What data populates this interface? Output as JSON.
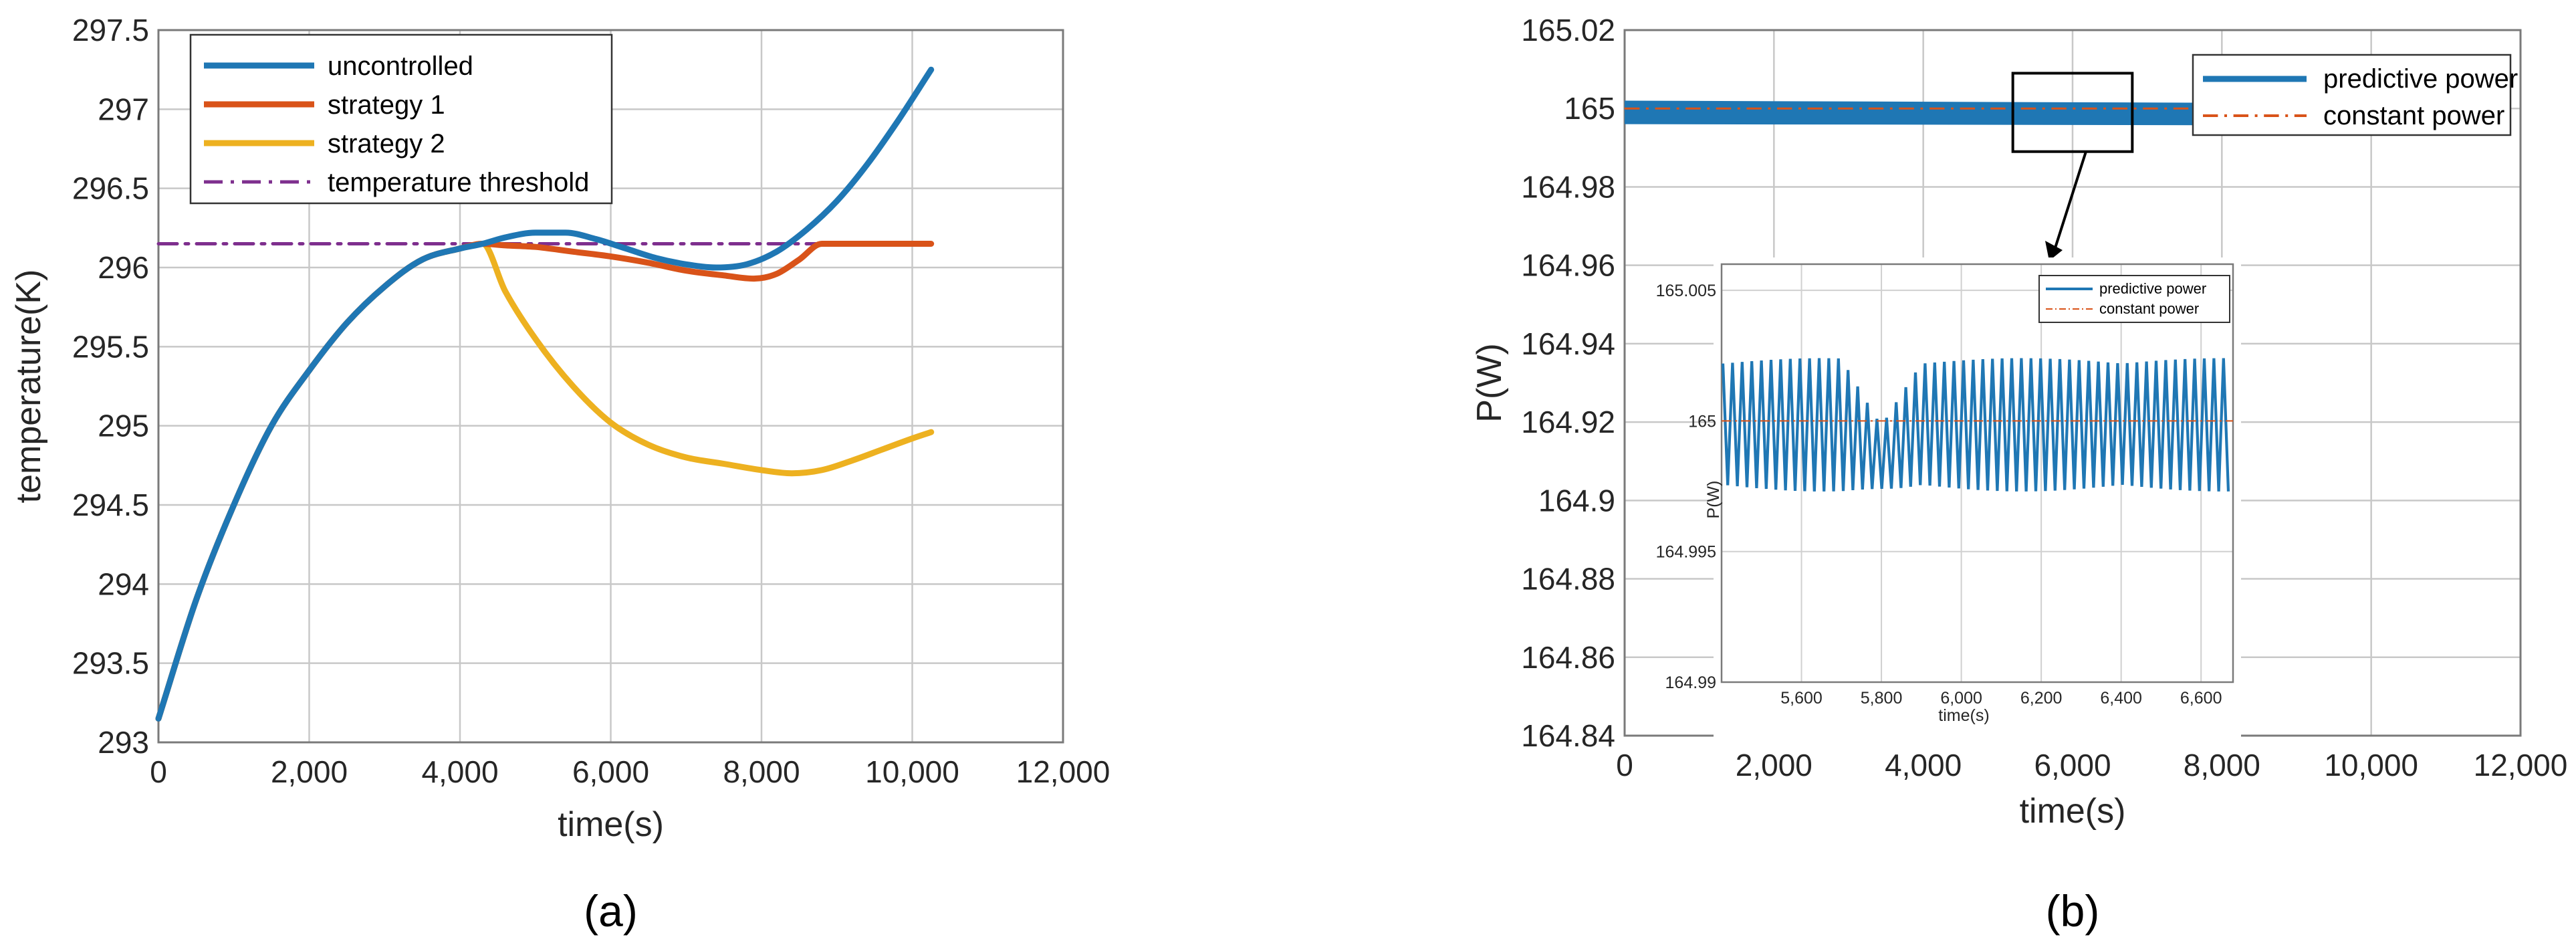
{
  "chart_data": [
    {
      "type": "line",
      "panel_label": "(a)",
      "xlabel": "time(s)",
      "ylabel": "temperature(K)",
      "xlim": [
        0,
        12000
      ],
      "ylim": [
        293,
        297.5
      ],
      "xticks": [
        0,
        2000,
        4000,
        6000,
        8000,
        10000,
        12000
      ],
      "xtick_labels": [
        "0",
        "2,000",
        "4,000",
        "6,000",
        "8,000",
        "10,000",
        "12,000"
      ],
      "yticks": [
        293,
        293.5,
        294,
        294.5,
        295,
        295.5,
        296,
        296.5,
        297,
        297.5
      ],
      "ytick_labels": [
        "293",
        "293.5",
        "294",
        "294.5",
        "295",
        "295.5",
        "296",
        "296.5",
        "297",
        "297.5"
      ],
      "grid": true,
      "legend_position": "top-left",
      "series": [
        {
          "name": "uncontrolled",
          "color": "#1f77b4",
          "style": "solid",
          "x": [
            0,
            500,
            1000,
            1500,
            2000,
            2500,
            3000,
            3500,
            4000,
            4300,
            4600,
            5000,
            5400,
            5800,
            6200,
            6600,
            7000,
            7400,
            7800,
            8200,
            8600,
            9000,
            9400,
            9800,
            10250
          ],
          "y": [
            293.15,
            293.9,
            294.5,
            295.0,
            295.35,
            295.65,
            295.88,
            296.05,
            296.12,
            296.15,
            296.19,
            296.22,
            296.22,
            296.18,
            296.12,
            296.06,
            296.02,
            296.0,
            296.02,
            296.1,
            296.24,
            296.42,
            296.65,
            296.92,
            297.25
          ]
        },
        {
          "name": "strategy 1",
          "color": "#d95319",
          "style": "solid",
          "x": [
            0,
            500,
            1000,
            1500,
            2000,
            2500,
            3000,
            3500,
            4000,
            4300,
            4600,
            5000,
            5500,
            6000,
            6500,
            7000,
            7500,
            7900,
            8200,
            8500,
            8800,
            9000,
            9500,
            10000,
            10250
          ],
          "y": [
            293.15,
            293.9,
            294.5,
            295.0,
            295.35,
            295.65,
            295.88,
            296.05,
            296.12,
            296.15,
            296.14,
            296.13,
            296.1,
            296.07,
            296.03,
            295.98,
            295.95,
            295.93,
            295.96,
            296.05,
            296.15,
            296.15,
            296.15,
            296.15,
            296.15
          ]
        },
        {
          "name": "strategy 2",
          "color": "#edb120",
          "style": "solid",
          "x": [
            0,
            500,
            1000,
            1500,
            2000,
            2500,
            3000,
            3500,
            4000,
            4300,
            4600,
            5000,
            5500,
            6000,
            6500,
            7000,
            7500,
            8000,
            8400,
            8800,
            9200,
            9600,
            10000,
            10250
          ],
          "y": [
            293.15,
            293.9,
            294.5,
            295.0,
            295.35,
            295.65,
            295.88,
            296.05,
            296.12,
            296.15,
            295.85,
            295.55,
            295.25,
            295.02,
            294.88,
            294.8,
            294.76,
            294.72,
            294.7,
            294.72,
            294.78,
            294.85,
            294.92,
            294.96
          ]
        },
        {
          "name": "temperature threshold",
          "color": "#7e2f8e",
          "style": "dashdot",
          "x": [
            0,
            10250
          ],
          "y": [
            296.15,
            296.15
          ]
        }
      ]
    },
    {
      "type": "line",
      "panel_label": "(b)",
      "xlabel": "time(s)",
      "ylabel": "P(W)",
      "xlim": [
        0,
        12000
      ],
      "ylim": [
        164.84,
        165.02
      ],
      "xticks": [
        0,
        2000,
        4000,
        6000,
        8000,
        10000,
        12000
      ],
      "xtick_labels": [
        "0",
        "2,000",
        "4,000",
        "6,000",
        "8,000",
        "10,000",
        "12,000"
      ],
      "yticks": [
        164.84,
        164.86,
        164.88,
        164.9,
        164.92,
        164.94,
        164.96,
        164.98,
        165,
        165.02
      ],
      "ytick_labels": [
        "164.84",
        "164.86",
        "164.88",
        "164.9",
        "164.92",
        "164.94",
        "164.96",
        "164.98",
        "165",
        "165.02"
      ],
      "grid": true,
      "legend_position": "top-right",
      "series": [
        {
          "name": "predictive power",
          "color": "#1f77b4",
          "style": "solid",
          "x": [
            0,
            10250
          ],
          "y_center": 165.0,
          "y_band": [
            164.996,
            165.002
          ]
        },
        {
          "name": "constant power",
          "color": "#d95319",
          "style": "dashdot",
          "x": [
            0,
            10250
          ],
          "y": [
            165.0,
            165.0
          ]
        }
      ],
      "zoom_box": {
        "x": [
          5200,
          6800
        ],
        "y": [
          164.989,
          165.009
        ]
      },
      "inset": {
        "xlabel": "time(s)",
        "ylabel": "P(W)",
        "xlim": [
          5400,
          6680
        ],
        "ylim": [
          164.99,
          165.006
        ],
        "xticks": [
          5600,
          5800,
          6000,
          6200,
          6400,
          6600
        ],
        "xtick_labels": [
          "5,600",
          "5,800",
          "6,000",
          "6,200",
          "6,400",
          "6,600"
        ],
        "yticks": [
          164.99,
          164.995,
          165,
          165.005
        ],
        "ytick_labels": [
          "164.99",
          "164.995",
          "165",
          "165.005"
        ],
        "series": [
          {
            "name": "predictive power",
            "color": "#1f77b4",
            "x": [
              5400,
              6680
            ],
            "y_band": [
              164.9973,
              165.0024
            ],
            "dip_at": 5800,
            "dip_band": [
              164.9974,
              164.9998
            ]
          },
          {
            "name": "constant power",
            "color": "#d95319",
            "style": "dashdot",
            "x": [
              5400,
              6680
            ],
            "y": [
              165.0,
              165.0
            ]
          }
        ]
      }
    }
  ]
}
